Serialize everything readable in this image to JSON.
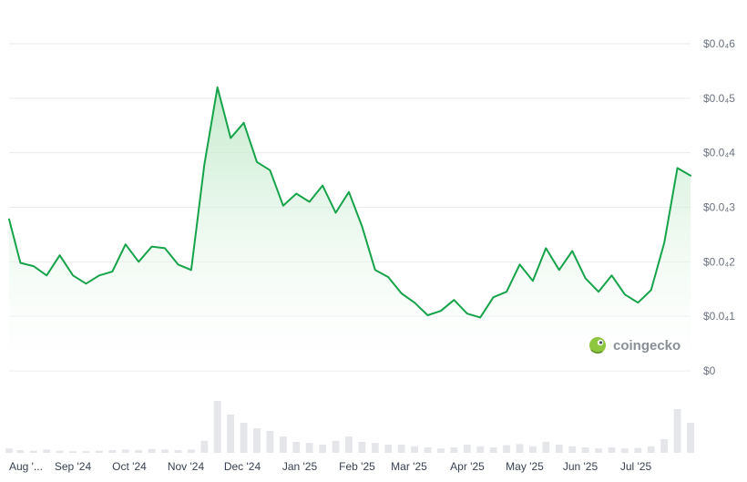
{
  "brand": {
    "name": "coingecko",
    "icon": "gecko-logo-icon"
  },
  "colors": {
    "line": "#16a34a",
    "fill_top": "#bde8c6",
    "fill_bottom": "#ffffff",
    "volume": "#e4e6e9",
    "logo": "#8dc63f"
  },
  "chart_data": {
    "type": "area",
    "title": "",
    "xlabel": "",
    "ylabel": "",
    "grid": true,
    "y_tick_labels": [
      {
        "value": 0,
        "label": "$0"
      },
      {
        "value": 1e-05,
        "label": "$0.0₄1"
      },
      {
        "value": 2e-05,
        "label": "$0.0₄2"
      },
      {
        "value": 3e-05,
        "label": "$0.0₄3"
      },
      {
        "value": 4e-05,
        "label": "$0.0₄4"
      },
      {
        "value": 5e-05,
        "label": "$0.0₄5"
      },
      {
        "value": 6e-05,
        "label": "$0.0₄6"
      }
    ],
    "ylim": [
      0,
      6e-05
    ],
    "x_tick_labels": [
      "Aug '...",
      "Sep '24",
      "Oct '24",
      "Nov '24",
      "Dec '24",
      "Jan '25",
      "Feb '25",
      "Mar '25",
      "Apr '25",
      "May '25",
      "Jun '25",
      "Jul '25"
    ],
    "x": [
      "2024-07-30",
      "2024-08-05",
      "2024-08-12",
      "2024-08-19",
      "2024-08-26",
      "2024-09-02",
      "2024-09-09",
      "2024-09-16",
      "2024-09-23",
      "2024-09-30",
      "2024-10-07",
      "2024-10-14",
      "2024-10-21",
      "2024-10-28",
      "2024-11-04",
      "2024-11-11",
      "2024-11-18",
      "2024-11-25",
      "2024-12-02",
      "2024-12-09",
      "2024-12-16",
      "2024-12-23",
      "2024-12-30",
      "2025-01-06",
      "2025-01-13",
      "2025-01-20",
      "2025-01-27",
      "2025-02-03",
      "2025-02-10",
      "2025-02-17",
      "2025-02-24",
      "2025-03-03",
      "2025-03-10",
      "2025-03-17",
      "2025-03-24",
      "2025-03-31",
      "2025-04-07",
      "2025-04-14",
      "2025-04-21",
      "2025-04-28",
      "2025-05-05",
      "2025-05-12",
      "2025-05-19",
      "2025-05-26",
      "2025-06-02",
      "2025-06-09",
      "2025-06-16",
      "2025-06-23",
      "2025-06-30",
      "2025-07-07",
      "2025-07-14",
      "2025-07-21",
      "2025-07-28"
    ],
    "series": [
      {
        "values": [
          2.78e-05,
          1.98e-05,
          1.92e-05,
          1.75e-05,
          2.12e-05,
          1.75e-05,
          1.6e-05,
          1.75e-05,
          1.82e-05,
          2.32e-05,
          2e-05,
          2.28e-05,
          2.25e-05,
          1.95e-05,
          1.85e-05,
          3.78e-05,
          5.2e-05,
          4.27e-05,
          4.55e-05,
          3.83e-05,
          3.68e-05,
          3.03e-05,
          3.25e-05,
          3.1e-05,
          3.4e-05,
          2.9e-05,
          3.28e-05,
          2.65e-05,
          1.85e-05,
          1.72e-05,
          1.42e-05,
          1.25e-05,
          1.02e-05,
          1.1e-05,
          1.3e-05,
          1.05e-05,
          9.8e-06,
          1.35e-05,
          1.45e-05,
          1.95e-05,
          1.65e-05,
          2.25e-05,
          1.85e-05,
          2.2e-05,
          1.7e-05,
          1.45e-05,
          1.75e-05,
          1.4e-05,
          1.25e-05,
          1.48e-05,
          2.35e-05,
          3.72e-05,
          3.58e-05
        ]
      }
    ],
    "volume_relative": [
      0.08,
      0.05,
      0.04,
      0.06,
      0.04,
      0.03,
      0.03,
      0.04,
      0.05,
      0.06,
      0.05,
      0.07,
      0.06,
      0.05,
      0.06,
      0.22,
      0.95,
      0.7,
      0.55,
      0.45,
      0.4,
      0.3,
      0.2,
      0.18,
      0.15,
      0.22,
      0.3,
      0.2,
      0.18,
      0.15,
      0.15,
      0.12,
      0.1,
      0.08,
      0.1,
      0.15,
      0.12,
      0.1,
      0.14,
      0.16,
      0.12,
      0.2,
      0.15,
      0.12,
      0.1,
      0.08,
      0.1,
      0.08,
      0.09,
      0.12,
      0.25,
      0.8,
      0.55
    ]
  }
}
